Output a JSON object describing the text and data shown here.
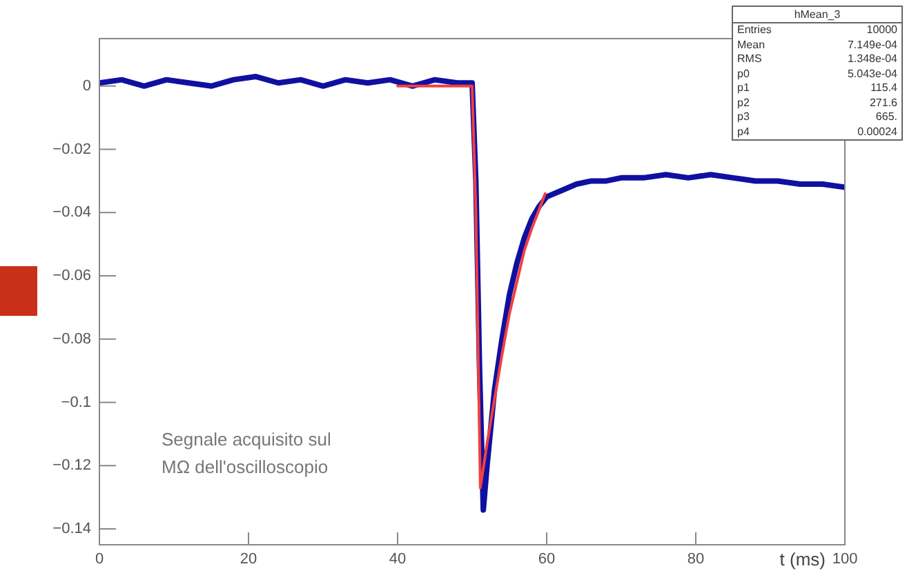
{
  "chart_data": {
    "type": "line",
    "xlabel": "t (ms)",
    "annotations": [
      "Segnale acquisito sul\nMΩ dell'oscilloscopio",
      "hMean_3",
      "Entries 10000",
      "Mean 7.149e-04",
      "RMS 1.348e-04",
      "p0 5.043e-04",
      "p1 115.4",
      "p2 271.6",
      "p3 665.",
      "p4 0.00024"
    ],
    "xlim": [
      0,
      100
    ],
    "xticks": [
      0,
      20,
      40,
      60,
      80,
      100
    ],
    "ylim": [
      -0.145,
      0.015
    ],
    "yticks": [
      0,
      -0.02,
      -0.04,
      -0.06,
      -0.08,
      -0.1,
      -0.12,
      -0.14
    ],
    "grid": false,
    "legend": false,
    "marker": "none",
    "line_style": "solid",
    "series": [
      {
        "color": "#1010a0",
        "x": [
          0,
          3,
          6,
          9,
          12,
          15,
          18,
          21,
          24,
          27,
          30,
          33,
          36,
          39,
          42,
          45,
          48,
          50,
          50.5,
          51,
          51.5,
          52,
          52.5,
          53,
          54,
          55,
          56,
          57,
          58,
          59,
          60,
          62,
          64,
          66,
          68,
          70,
          73,
          76,
          79,
          82,
          85,
          88,
          91,
          94,
          97,
          100
        ],
        "values": [
          0.001,
          0.002,
          0.0,
          0.002,
          0.001,
          0.0,
          0.002,
          0.003,
          0.001,
          0.002,
          0.0,
          0.002,
          0.001,
          0.002,
          0.0,
          0.002,
          0.001,
          0.001,
          -0.03,
          -0.09,
          -0.134,
          -0.12,
          -0.108,
          -0.096,
          -0.08,
          -0.066,
          -0.056,
          -0.048,
          -0.042,
          -0.038,
          -0.035,
          -0.033,
          -0.031,
          -0.03,
          -0.03,
          -0.029,
          -0.029,
          -0.028,
          -0.029,
          -0.028,
          -0.029,
          -0.03,
          -0.03,
          -0.031,
          -0.031,
          -0.032
        ]
      },
      {
        "color": "#f04040",
        "x": [
          40,
          50,
          50.5,
          51.1,
          52,
          53,
          54,
          55,
          56,
          57,
          58,
          59,
          59.8
        ],
        "values": [
          0.0,
          0.0,
          -0.04,
          -0.127,
          -0.113,
          -0.099,
          -0.085,
          -0.072,
          -0.062,
          -0.052,
          -0.045,
          -0.039,
          -0.034
        ]
      }
    ]
  }
}
